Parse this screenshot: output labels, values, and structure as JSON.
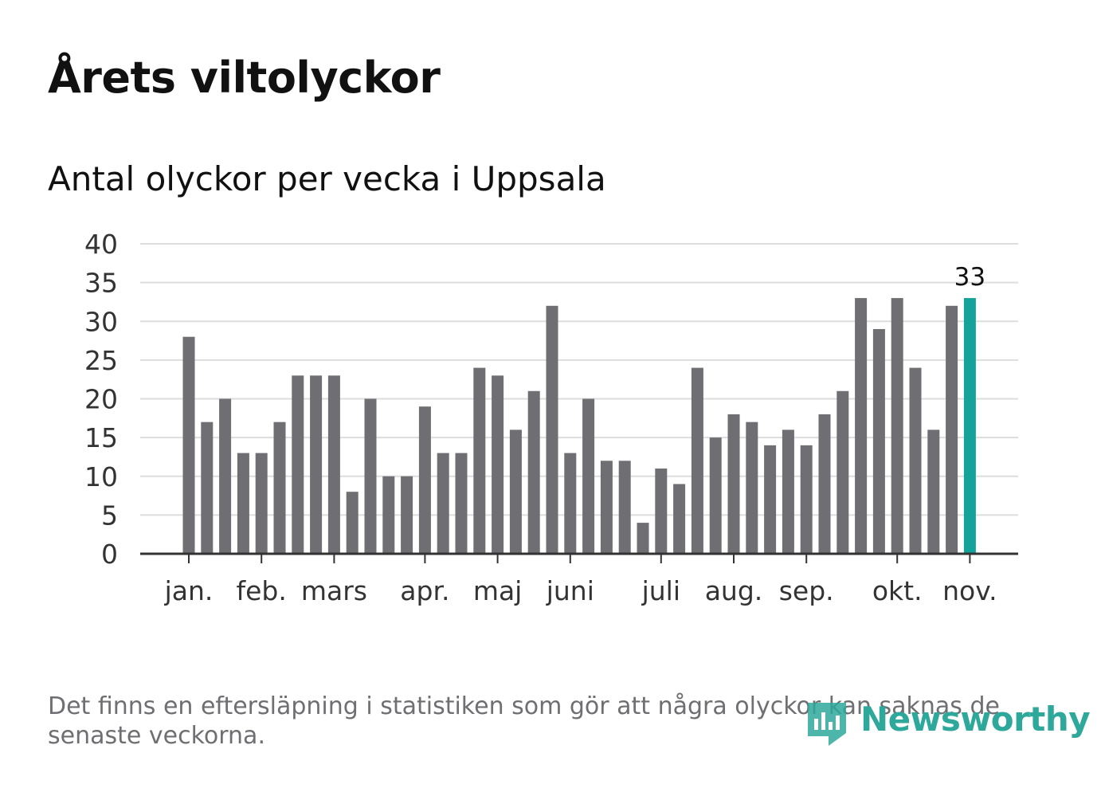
{
  "header": {
    "title": "Årets viltolyckor",
    "subtitle": "Antal olyckor per vecka i Uppsala"
  },
  "footer": {
    "note": "Det finns en eftersläpning i statistiken som gör att några olyckor kan saknas de senaste veckorna.",
    "brand": "Newsworthy"
  },
  "colors": {
    "bar": "#6e6e73",
    "highlight": "#14a39a",
    "grid": "#dddddd",
    "axis": "#333333",
    "brand": "#2ea89a"
  },
  "chart_data": {
    "type": "bar",
    "title": "Årets viltolyckor",
    "subtitle": "Antal olyckor per vecka i Uppsala",
    "xlabel": "",
    "ylabel": "",
    "ylim": [
      0,
      40
    ],
    "yticks": [
      0,
      5,
      10,
      15,
      20,
      25,
      30,
      35,
      40
    ],
    "grid": true,
    "values": [
      28,
      17,
      20,
      13,
      13,
      17,
      23,
      23,
      23,
      8,
      20,
      10,
      10,
      19,
      13,
      13,
      24,
      23,
      16,
      21,
      32,
      13,
      20,
      12,
      12,
      4,
      11,
      9,
      24,
      15,
      18,
      17,
      14,
      16,
      14,
      18,
      21,
      33,
      29,
      33,
      24,
      16,
      32,
      33
    ],
    "highlight_index": 43,
    "highlight_label": "33",
    "month_labels": [
      {
        "label": "jan.",
        "week_index": 0
      },
      {
        "label": "feb.",
        "week_index": 4
      },
      {
        "label": "mars",
        "week_index": 8
      },
      {
        "label": "apr.",
        "week_index": 13
      },
      {
        "label": "maj",
        "week_index": 17
      },
      {
        "label": "juni",
        "week_index": 21
      },
      {
        "label": "juli",
        "week_index": 26
      },
      {
        "label": "aug.",
        "week_index": 30
      },
      {
        "label": "sep.",
        "week_index": 34
      },
      {
        "label": "okt.",
        "week_index": 39
      },
      {
        "label": "nov.",
        "week_index": 43
      }
    ]
  }
}
